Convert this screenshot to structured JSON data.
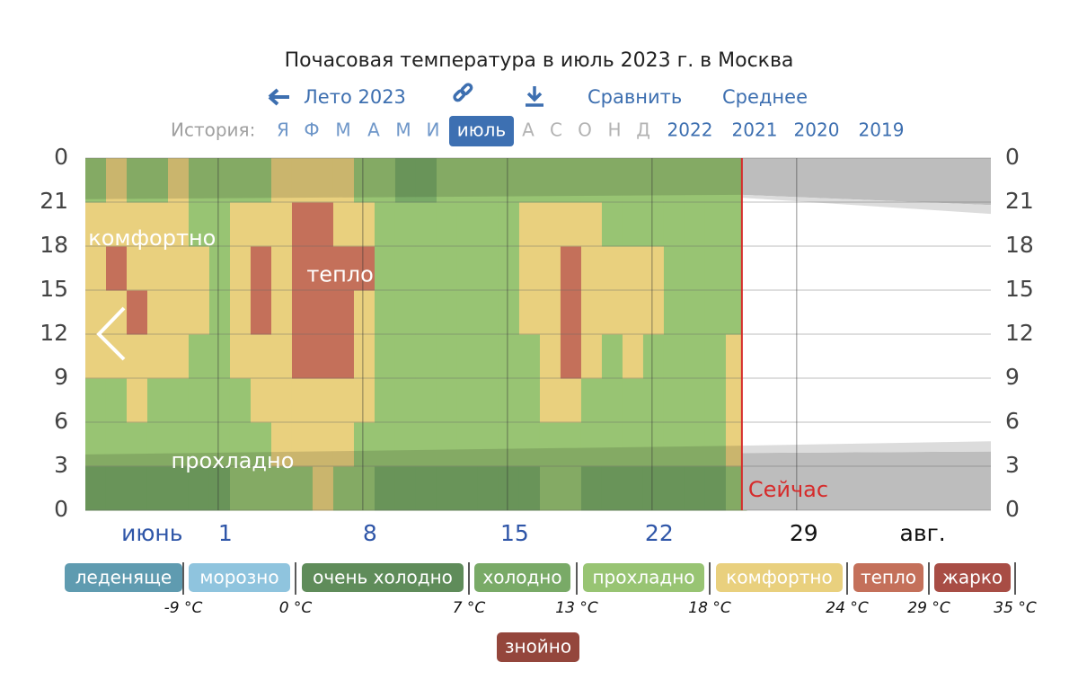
{
  "chart_data": {
    "type": "heatmap",
    "title": "Почасовая температура в июль 2023 г. в Москва",
    "nav": {
      "back": "Лето 2023",
      "compare": "Сравнить",
      "average": "Среднее"
    },
    "history": {
      "label": "История:",
      "months": [
        "Я",
        "Ф",
        "М",
        "А",
        "М",
        "И",
        "июль",
        "А",
        "С",
        "О",
        "Н",
        "Д"
      ],
      "selected": 6,
      "years": [
        "2022",
        "2021",
        "2020",
        "2019"
      ]
    },
    "ylim": [
      0,
      24
    ],
    "yticks": [
      {
        "value": 24,
        "label": "0"
      },
      21,
      18,
      15,
      12,
      9,
      6,
      3,
      0
    ],
    "xlim": [
      -5.43,
      38.4
    ],
    "xticks": [
      {
        "value": -2.2,
        "label": "июнь"
      },
      1,
      8,
      15,
      22,
      29,
      {
        "value": 35.1,
        "label": "авг."
      }
    ],
    "now": 26.35,
    "now_label": "Сейчас",
    "annotations": [
      {
        "text": "комфортно",
        "x": -2.2,
        "y": 18.5
      },
      {
        "text": "тепло",
        "x": 6.9,
        "y": 16
      },
      {
        "text": "прохладно",
        "x": 1.7,
        "y": 3.3
      }
    ],
    "cells": [
      [
        3,
        3,
        3,
        3,
        3,
        3,
        3,
        4,
        4,
        4,
        4,
        5,
        4,
        4,
        3,
        3,
        3,
        3,
        3,
        3,
        3,
        3,
        4,
        4,
        3,
        3,
        3,
        3,
        3,
        3,
        3,
        4
      ],
      [
        4,
        4,
        4,
        4,
        4,
        4,
        4,
        4,
        4,
        5,
        5,
        5,
        5,
        4,
        4,
        4,
        4,
        4,
        4,
        4,
        4,
        4,
        4,
        4,
        4,
        4,
        4,
        4,
        4,
        4,
        4,
        5
      ],
      [
        4,
        4,
        5,
        4,
        4,
        4,
        4,
        4,
        5,
        5,
        5,
        5,
        5,
        5,
        4,
        4,
        4,
        4,
        4,
        4,
        4,
        4,
        5,
        5,
        4,
        4,
        4,
        4,
        4,
        4,
        4,
        5
      ],
      [
        5,
        5,
        5,
        5,
        5,
        4,
        4,
        5,
        5,
        5,
        6,
        6,
        6,
        5,
        4,
        4,
        4,
        4,
        4,
        4,
        4,
        4,
        5,
        6,
        5,
        4,
        5,
        4,
        4,
        4,
        4,
        5
      ],
      [
        5,
        5,
        6,
        5,
        5,
        5,
        4,
        5,
        6,
        5,
        6,
        6,
        6,
        5,
        4,
        4,
        4,
        4,
        4,
        4,
        4,
        5,
        5,
        6,
        5,
        5,
        5,
        5,
        4,
        4,
        4,
        4
      ],
      [
        5,
        6,
        5,
        5,
        5,
        5,
        4,
        5,
        6,
        5,
        6,
        6,
        6,
        6,
        4,
        4,
        4,
        4,
        4,
        4,
        4,
        5,
        5,
        6,
        5,
        5,
        5,
        5,
        4,
        4,
        4,
        4
      ],
      [
        5,
        5,
        5,
        5,
        5,
        4,
        4,
        5,
        5,
        5,
        6,
        6,
        5,
        5,
        4,
        4,
        4,
        4,
        4,
        4,
        4,
        5,
        5,
        5,
        5,
        4,
        4,
        4,
        4,
        4,
        4,
        4
      ],
      [
        4,
        5,
        4,
        4,
        5,
        4,
        4,
        4,
        4,
        5,
        5,
        5,
        5,
        4,
        4,
        3,
        3,
        4,
        4,
        4,
        4,
        4,
        4,
        4,
        4,
        4,
        4,
        4,
        4,
        4,
        4,
        4
      ]
    ],
    "legend": [
      {
        "name": "леденяще",
        "color": "#5f9bb0"
      },
      {
        "name": "морозно",
        "color": "#8fc4de"
      },
      {
        "name": "очень холодно",
        "color": "#5f8c5a"
      },
      {
        "name": "холодно",
        "color": "#79aa67"
      },
      {
        "name": "прохладно",
        "color": "#98c473"
      },
      {
        "name": "комфортно",
        "color": "#e9d07e"
      },
      {
        "name": "тепло",
        "color": "#c4705a"
      },
      {
        "name": "жарко",
        "color": "#a84d45"
      },
      {
        "name": "знойно",
        "color": "#94463c"
      }
    ],
    "thresholds": [
      {
        "value": -9,
        "label": "-9 °C"
      },
      {
        "value": 0,
        "label": "0 °C"
      },
      {
        "value": 7,
        "label": "7 °C"
      },
      {
        "value": 13,
        "label": "13 °C"
      },
      {
        "value": 18,
        "label": "18 °C"
      },
      {
        "value": 24,
        "label": "24 °C"
      },
      {
        "value": 29,
        "label": "29 °C"
      },
      {
        "value": 35,
        "label": "35 °C"
      }
    ]
  }
}
